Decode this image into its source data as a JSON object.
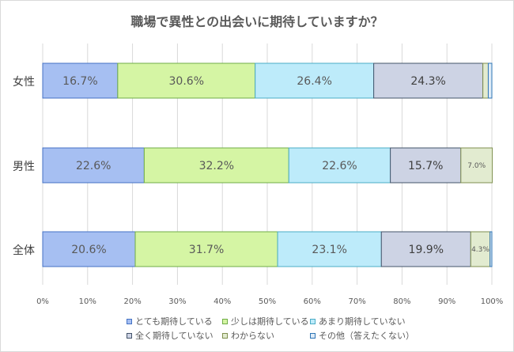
{
  "chart_data": {
    "type": "bar",
    "orientation": "horizontal",
    "stacked": true,
    "title": "職場で異性との出会いに期待していますか？",
    "categories": [
      "女性",
      "男性",
      "全体"
    ],
    "series": [
      {
        "name": "とても期待している",
        "values": [
          16.7,
          22.6,
          20.6
        ],
        "labels": [
          "16.7%",
          "22.6%",
          "20.6%"
        ],
        "color": "#a6bff2",
        "border": "#4472c4",
        "label_color": "#595959"
      },
      {
        "name": "少しは期待している",
        "values": [
          30.6,
          32.2,
          31.7
        ],
        "labels": [
          "30.6%",
          "32.2%",
          "31.7%"
        ],
        "color": "#d5f5a4",
        "border": "#70ad47",
        "label_color": "#595959"
      },
      {
        "name": "あまり期待していない",
        "values": [
          26.4,
          22.6,
          23.1
        ],
        "labels": [
          "26.4%",
          "22.6%",
          "23.1%"
        ],
        "color": "#bdebfa",
        "border": "#4bacc6",
        "label_color": "#595959"
      },
      {
        "name": "全く期待していない",
        "values": [
          24.3,
          15.7,
          19.9
        ],
        "labels": [
          "24.3%",
          "15.7%",
          "19.9%"
        ],
        "color": "#cdd3e4",
        "border": "#44546a",
        "label_color": "#404040"
      },
      {
        "name": "わからない",
        "values": [
          1.2,
          7.0,
          4.3
        ],
        "labels": [
          "",
          "7.0%",
          "4.3%"
        ],
        "color": "#e2ebd0",
        "border": "#7f8f4f",
        "label_color": "#595959"
      },
      {
        "name": "その他（答えたくない）",
        "values": [
          0.8,
          0.0,
          0.4
        ],
        "labels": [
          "",
          "",
          ""
        ],
        "color": "#deebf7",
        "border": "#2e75b6",
        "label_color": "#595959"
      }
    ],
    "xlim": [
      0,
      100
    ],
    "xticks": [
      "0%",
      "10%",
      "20%",
      "30%",
      "40%",
      "50%",
      "60%",
      "70%",
      "80%",
      "90%",
      "100%"
    ],
    "grid": true,
    "legend": "bottom"
  }
}
